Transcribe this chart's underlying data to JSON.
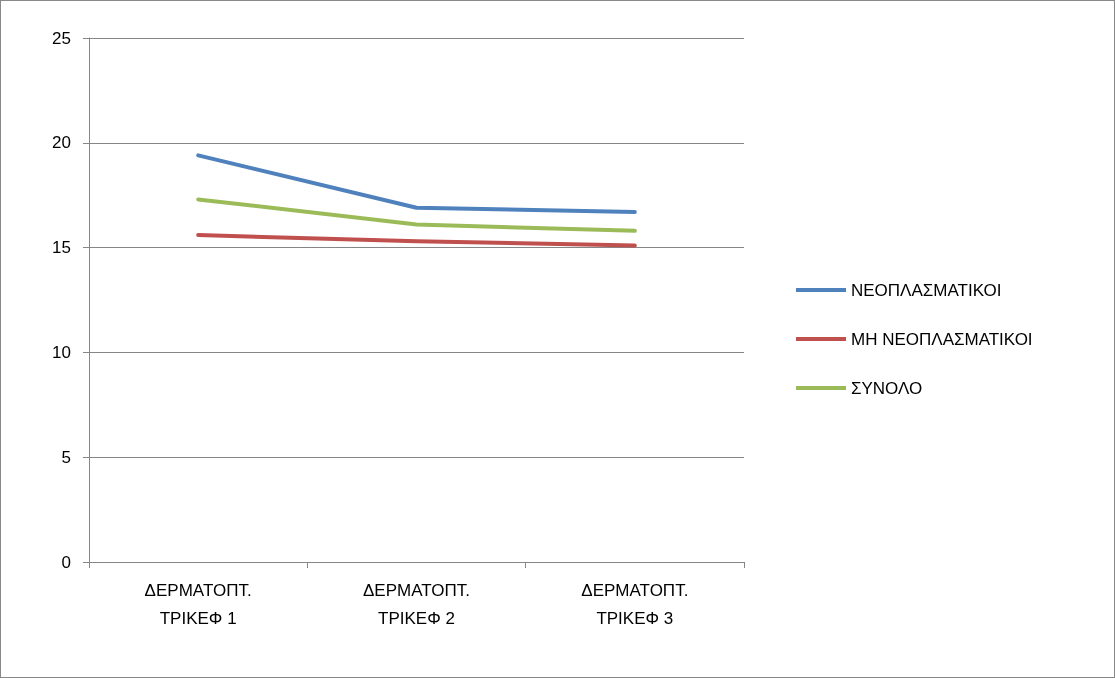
{
  "chart_data": {
    "type": "line",
    "categories": [
      "ΔΕΡΜΑΤΟΠΤ. ΤΡΙΚΕΦ 1",
      "ΔΕΡΜΑΤΟΠΤ. ΤΡΙΚΕΦ 2",
      "ΔΕΡΜΑΤΟΠΤ. ΤΡΙΚΕΦ 3"
    ],
    "series": [
      {
        "name": "ΝΕΟΠΛΑΣΜΑΤΙΚΟΙ",
        "color": "#4f81bd",
        "values": [
          19.4,
          16.9,
          16.7
        ]
      },
      {
        "name": "ΜΗ ΝΕΟΠΛΑΣΜΑΤΙΚΟΙ",
        "color": "#c0504d",
        "values": [
          15.6,
          15.3,
          15.1
        ]
      },
      {
        "name": "ΣΥΝΟΛΟ",
        "color": "#9bbb59",
        "values": [
          17.3,
          16.1,
          15.8
        ]
      }
    ],
    "ylim": [
      0,
      25
    ],
    "yticks": [
      0,
      5,
      10,
      15,
      20,
      25
    ],
    "grid": "y",
    "legend": "right",
    "marker": "none",
    "line_style": "solid"
  }
}
